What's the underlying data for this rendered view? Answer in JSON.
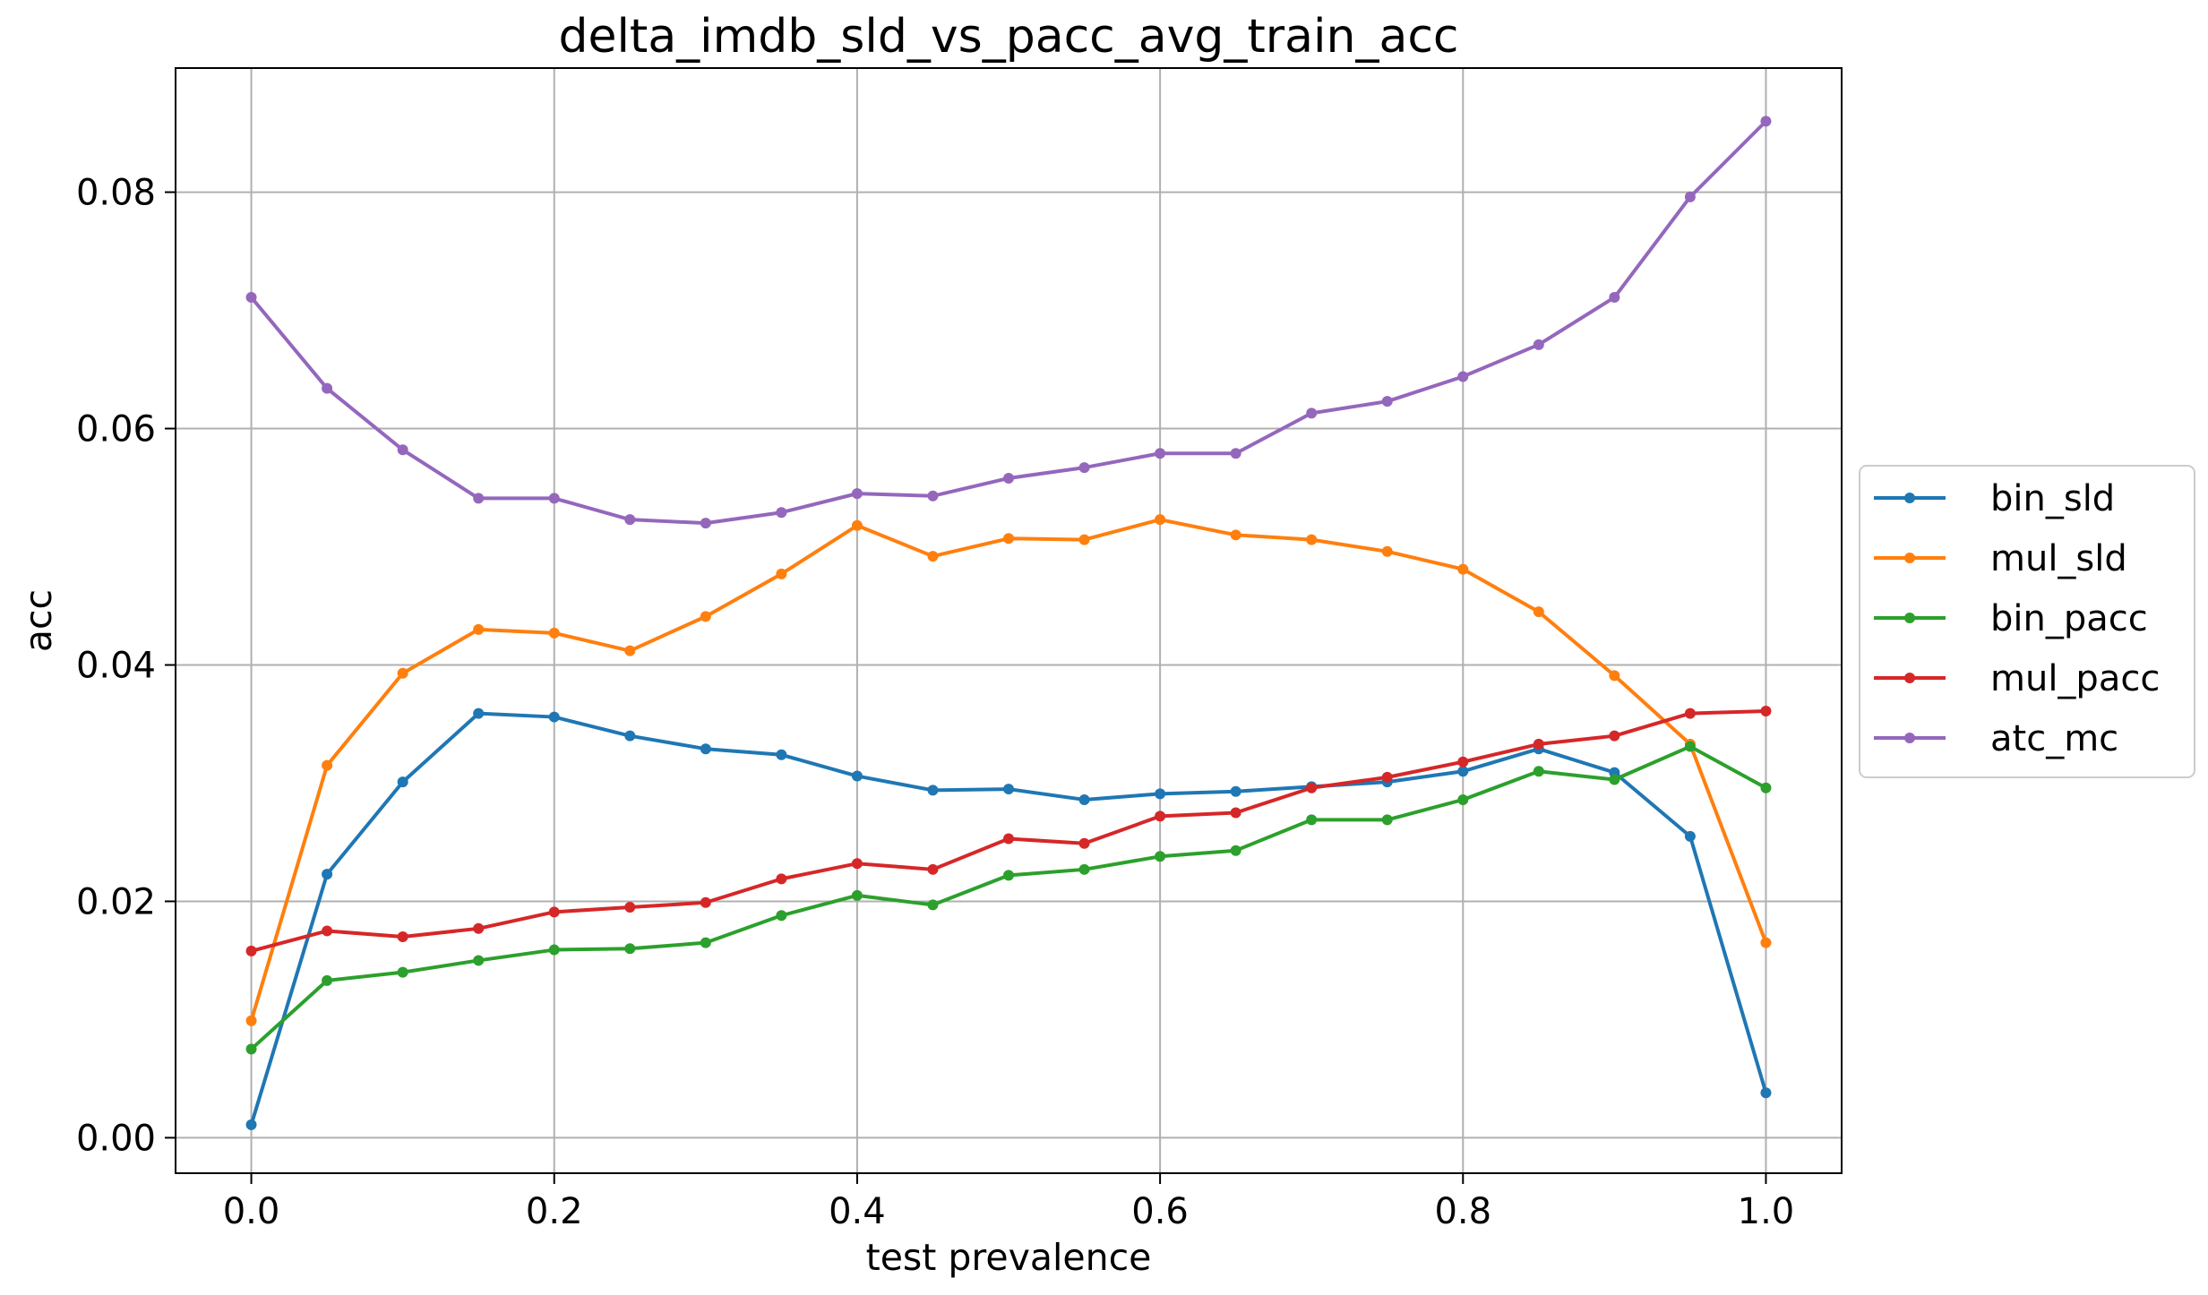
{
  "chart_data": {
    "type": "line",
    "title": "delta_imdb_sld_vs_pacc_avg_train_acc",
    "xlabel": "test prevalence",
    "ylabel": "acc",
    "xlim": [
      -0.05,
      1.05
    ],
    "ylim": [
      -0.003,
      0.0905
    ],
    "grid": true,
    "legend_position": "right-outside",
    "x_ticks": [
      {
        "value": 0.0,
        "label": "0.0"
      },
      {
        "value": 0.2,
        "label": "0.2"
      },
      {
        "value": 0.4,
        "label": "0.4"
      },
      {
        "value": 0.6,
        "label": "0.6"
      },
      {
        "value": 0.8,
        "label": "0.8"
      },
      {
        "value": 1.0,
        "label": "1.0"
      }
    ],
    "y_ticks": [
      {
        "value": 0.0,
        "label": "0.00"
      },
      {
        "value": 0.02,
        "label": "0.02"
      },
      {
        "value": 0.04,
        "label": "0.04"
      },
      {
        "value": 0.06,
        "label": "0.06"
      },
      {
        "value": 0.08,
        "label": "0.08"
      }
    ],
    "x": [
      0.0,
      0.05,
      0.1,
      0.15,
      0.2,
      0.25,
      0.3,
      0.35,
      0.4,
      0.45,
      0.5,
      0.55,
      0.6,
      0.65,
      0.7,
      0.75,
      0.8,
      0.85,
      0.9,
      0.95,
      1.0
    ],
    "series": [
      {
        "name": "bin_sld",
        "color": "#1f77b4",
        "values": [
          0.0011,
          0.0223,
          0.0301,
          0.0359,
          0.0356,
          0.034,
          0.0329,
          0.0324,
          0.0306,
          0.0294,
          0.0295,
          0.0286,
          0.0291,
          0.0293,
          0.0297,
          0.0301,
          0.031,
          0.0329,
          0.0309,
          0.0255,
          0.0038
        ]
      },
      {
        "name": "mul_sld",
        "color": "#ff7f0e",
        "values": [
          0.0099,
          0.0315,
          0.0393,
          0.043,
          0.0427,
          0.0412,
          0.0441,
          0.0477,
          0.0518,
          0.0492,
          0.0507,
          0.0506,
          0.0523,
          0.051,
          0.0506,
          0.0496,
          0.0481,
          0.0445,
          0.0391,
          0.0333,
          0.0165
        ]
      },
      {
        "name": "bin_pacc",
        "color": "#2ca02c",
        "values": [
          0.0075,
          0.0133,
          0.014,
          0.015,
          0.0159,
          0.016,
          0.0165,
          0.0188,
          0.0205,
          0.0197,
          0.0222,
          0.0227,
          0.0238,
          0.0243,
          0.0269,
          0.0269,
          0.0286,
          0.031,
          0.0303,
          0.0331,
          0.0296
        ]
      },
      {
        "name": "mul_pacc",
        "color": "#d62728",
        "values": [
          0.0158,
          0.0175,
          0.017,
          0.0177,
          0.0191,
          0.0195,
          0.0199,
          0.0219,
          0.0232,
          0.0227,
          0.0253,
          0.0249,
          0.0272,
          0.0275,
          0.0296,
          0.0305,
          0.0318,
          0.0333,
          0.034,
          0.0359,
          0.0361
        ]
      },
      {
        "name": "atc_mc",
        "color": "#9467bd",
        "values": [
          0.0711,
          0.0634,
          0.0582,
          0.0541,
          0.0541,
          0.0523,
          0.052,
          0.0529,
          0.0545,
          0.0543,
          0.0558,
          0.0567,
          0.0579,
          0.0579,
          0.0613,
          0.0623,
          0.0644,
          0.0671,
          0.0711,
          0.0796,
          0.086
        ]
      }
    ]
  }
}
